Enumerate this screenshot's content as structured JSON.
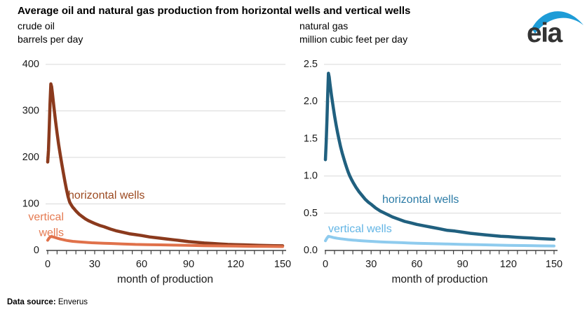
{
  "title": "Average oil and natural gas production from horizontal wells and vertical wells",
  "logo": {
    "text": "eia"
  },
  "footer": {
    "label": "Data source:",
    "value": "Enverus"
  },
  "colors": {
    "grid": "#d9d9d9",
    "axis": "#404040",
    "tick_text": "#1a1a1a",
    "logo_swoosh": "#1e9cd7",
    "logo_text": "#333333"
  },
  "chart_data": [
    {
      "type": "line",
      "panel": "crude oil",
      "units": "barrels per day",
      "xlabel": "month of production",
      "xlim": [
        0,
        150
      ],
      "ylim": [
        0,
        400
      ],
      "xticks": [
        0,
        30,
        60,
        90,
        120,
        150
      ],
      "xtick_minor_step": 6,
      "ytick_values": [
        0,
        100,
        200,
        300,
        400
      ],
      "ytick_labels": [
        "0",
        "100",
        "200",
        "300",
        "400"
      ],
      "grid": true,
      "legend": "in-plot labels",
      "series": [
        {
          "name": "horizontal wells",
          "color": "#8b3a1d",
          "label_color": "#9c4a21",
          "points": [
            [
              0,
              190
            ],
            [
              0.5,
              215
            ],
            [
              1,
              262
            ],
            [
              1.5,
              315
            ],
            [
              2,
              358
            ],
            [
              2.5,
              352
            ],
            [
              3,
              338
            ],
            [
              4,
              308
            ],
            [
              5,
              278
            ],
            [
              6,
              252
            ],
            [
              7,
              228
            ],
            [
              8,
              206
            ],
            [
              9,
              186
            ],
            [
              10,
              167
            ],
            [
              11,
              148
            ],
            [
              12,
              131
            ],
            [
              13,
              116
            ],
            [
              14,
              104
            ],
            [
              15,
              98
            ],
            [
              16,
              93
            ],
            [
              17,
              89
            ],
            [
              18,
              85
            ],
            [
              20,
              78
            ],
            [
              22,
              73
            ],
            [
              24,
              68
            ],
            [
              26,
              64
            ],
            [
              28,
              61
            ],
            [
              30,
              58
            ],
            [
              33,
              54
            ],
            [
              36,
              51
            ],
            [
              40,
              46
            ],
            [
              44,
              42
            ],
            [
              48,
              39
            ],
            [
              52,
              36
            ],
            [
              56,
              34
            ],
            [
              60,
              32
            ],
            [
              65,
              29
            ],
            [
              70,
              27
            ],
            [
              75,
              25
            ],
            [
              80,
              23
            ],
            [
              85,
              21
            ],
            [
              90,
              19
            ],
            [
              95,
              17.5
            ],
            [
              100,
              16
            ],
            [
              105,
              15
            ],
            [
              110,
              14
            ],
            [
              115,
              13
            ],
            [
              120,
              12.5
            ],
            [
              125,
              12
            ],
            [
              130,
              11.5
            ],
            [
              135,
              11
            ],
            [
              140,
              10.5
            ],
            [
              145,
              10.2
            ],
            [
              150,
              10
            ]
          ]
        },
        {
          "name": "vertical wells",
          "color": "#e0714a",
          "label_color": "#e57b52",
          "points": [
            [
              0,
              22
            ],
            [
              1,
              27
            ],
            [
              2,
              30
            ],
            [
              3,
              29.5
            ],
            [
              4,
              28.5
            ],
            [
              5,
              27.5
            ],
            [
              6,
              26.5
            ],
            [
              8,
              24.5
            ],
            [
              10,
              23
            ],
            [
              12,
              21.5
            ],
            [
              14,
              20.5
            ],
            [
              16,
              19.5
            ],
            [
              18,
              19
            ],
            [
              20,
              18.5
            ],
            [
              24,
              17.5
            ],
            [
              28,
              16.5
            ],
            [
              32,
              16
            ],
            [
              36,
              15.5
            ],
            [
              40,
              15
            ],
            [
              48,
              14
            ],
            [
              56,
              13
            ],
            [
              64,
              12.5
            ],
            [
              72,
              12
            ],
            [
              80,
              11.5
            ],
            [
              90,
              10.8
            ],
            [
              100,
              10.2
            ],
            [
              110,
              9.7
            ],
            [
              120,
              9.3
            ],
            [
              130,
              8.9
            ],
            [
              140,
              8.5
            ],
            [
              150,
              8.2
            ]
          ]
        }
      ]
    },
    {
      "type": "line",
      "panel": "natural gas",
      "units": "million cubic feet per day",
      "xlabel": "month of production",
      "xlim": [
        0,
        150
      ],
      "ylim": [
        0,
        2.5
      ],
      "xticks": [
        0,
        30,
        60,
        90,
        120,
        150
      ],
      "xtick_minor_step": 6,
      "ytick_values": [
        0,
        0.5,
        1.0,
        1.5,
        2.0,
        2.5
      ],
      "ytick_labels": [
        "0.0",
        "0.5",
        "1.0",
        "1.5",
        "2.0",
        "2.5"
      ],
      "grid": true,
      "legend": "in-plot labels",
      "series": [
        {
          "name": "horizontal wells",
          "color": "#20607f",
          "label_color": "#2b7ba6",
          "points": [
            [
              0,
              1.22
            ],
            [
              0.5,
              1.45
            ],
            [
              1,
              1.75
            ],
            [
              1.5,
              2.1
            ],
            [
              2,
              2.38
            ],
            [
              2.5,
              2.33
            ],
            [
              3,
              2.24
            ],
            [
              4,
              2.08
            ],
            [
              5,
              1.94
            ],
            [
              6,
              1.81
            ],
            [
              7,
              1.69
            ],
            [
              8,
              1.58
            ],
            [
              9,
              1.48
            ],
            [
              10,
              1.39
            ],
            [
              11,
              1.31
            ],
            [
              12,
              1.24
            ],
            [
              13,
              1.17
            ],
            [
              14,
              1.11
            ],
            [
              15,
              1.05
            ],
            [
              16,
              1.0
            ],
            [
              17,
              0.96
            ],
            [
              18,
              0.92
            ],
            [
              20,
              0.85
            ],
            [
              22,
              0.79
            ],
            [
              24,
              0.74
            ],
            [
              26,
              0.69
            ],
            [
              28,
              0.65
            ],
            [
              30,
              0.62
            ],
            [
              33,
              0.57
            ],
            [
              36,
              0.53
            ],
            [
              40,
              0.49
            ],
            [
              44,
              0.45
            ],
            [
              48,
              0.42
            ],
            [
              52,
              0.39
            ],
            [
              56,
              0.37
            ],
            [
              60,
              0.35
            ],
            [
              65,
              0.33
            ],
            [
              70,
              0.31
            ],
            [
              75,
              0.29
            ],
            [
              80,
              0.27
            ],
            [
              85,
              0.26
            ],
            [
              90,
              0.245
            ],
            [
              95,
              0.23
            ],
            [
              100,
              0.22
            ],
            [
              105,
              0.21
            ],
            [
              110,
              0.2
            ],
            [
              115,
              0.19
            ],
            [
              120,
              0.185
            ],
            [
              125,
              0.178
            ],
            [
              130,
              0.172
            ],
            [
              135,
              0.166
            ],
            [
              140,
              0.16
            ],
            [
              145,
              0.155
            ],
            [
              150,
              0.15
            ]
          ]
        },
        {
          "name": "vertical wells",
          "color": "#8ecbee",
          "label_color": "#62b5e5",
          "points": [
            [
              0,
              0.13
            ],
            [
              1,
              0.165
            ],
            [
              2,
              0.19
            ],
            [
              3,
              0.185
            ],
            [
              4,
              0.18
            ],
            [
              5,
              0.175
            ],
            [
              6,
              0.17
            ],
            [
              8,
              0.163
            ],
            [
              10,
              0.157
            ],
            [
              12,
              0.152
            ],
            [
              15,
              0.145
            ],
            [
              18,
              0.139
            ],
            [
              21,
              0.134
            ],
            [
              24,
              0.13
            ],
            [
              28,
              0.125
            ],
            [
              32,
              0.12
            ],
            [
              36,
              0.116
            ],
            [
              40,
              0.112
            ],
            [
              45,
              0.108
            ],
            [
              50,
              0.104
            ],
            [
              55,
              0.1
            ],
            [
              60,
              0.097
            ],
            [
              70,
              0.091
            ],
            [
              80,
              0.086
            ],
            [
              90,
              0.081
            ],
            [
              100,
              0.077
            ],
            [
              110,
              0.073
            ],
            [
              120,
              0.069
            ],
            [
              130,
              0.066
            ],
            [
              140,
              0.062
            ],
            [
              150,
              0.06
            ]
          ]
        }
      ]
    }
  ]
}
